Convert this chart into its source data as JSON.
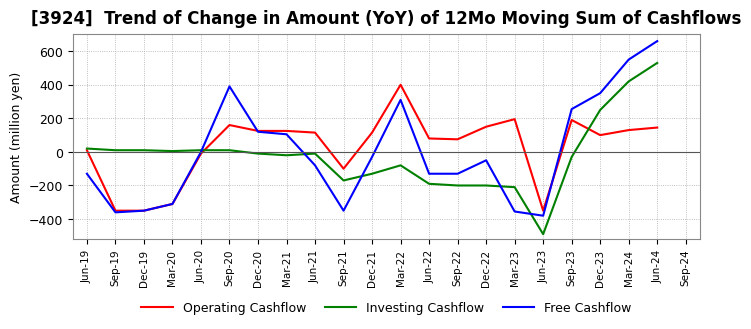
{
  "title": "[3924]  Trend of Change in Amount (YoY) of 12Mo Moving Sum of Cashflows",
  "ylabel": "Amount (million yen)",
  "x_labels": [
    "Jun-19",
    "Sep-19",
    "Dec-19",
    "Mar-20",
    "Jun-20",
    "Sep-20",
    "Dec-20",
    "Mar-21",
    "Jun-21",
    "Sep-21",
    "Dec-21",
    "Mar-22",
    "Jun-22",
    "Sep-22",
    "Dec-22",
    "Mar-23",
    "Jun-23",
    "Sep-23",
    "Dec-23",
    "Mar-24",
    "Jun-24",
    "Sep-24"
  ],
  "operating": [
    10,
    -350,
    -350,
    -310,
    -10,
    160,
    125,
    125,
    115,
    -100,
    115,
    400,
    80,
    75,
    150,
    195,
    -350,
    190,
    100,
    130,
    145,
    null
  ],
  "investing": [
    20,
    10,
    10,
    5,
    10,
    10,
    -10,
    -20,
    -10,
    -170,
    -130,
    -80,
    -190,
    -200,
    -200,
    -210,
    -490,
    -30,
    250,
    420,
    530,
    null
  ],
  "free": [
    -130,
    -360,
    -350,
    -310,
    0,
    390,
    120,
    105,
    -80,
    -350,
    -30,
    310,
    -130,
    -130,
    -50,
    -355,
    -380,
    255,
    350,
    550,
    660,
    null
  ],
  "operating_color": "#ff0000",
  "investing_color": "#008000",
  "free_color": "#0000ff",
  "ylim": [
    -520,
    700
  ],
  "yticks": [
    -400,
    -200,
    0,
    200,
    400,
    600
  ],
  "grid_color": "#aaaaaa",
  "background_color": "#ffffff",
  "title_fontsize": 12,
  "legend_labels": [
    "Operating Cashflow",
    "Investing Cashflow",
    "Free Cashflow"
  ]
}
